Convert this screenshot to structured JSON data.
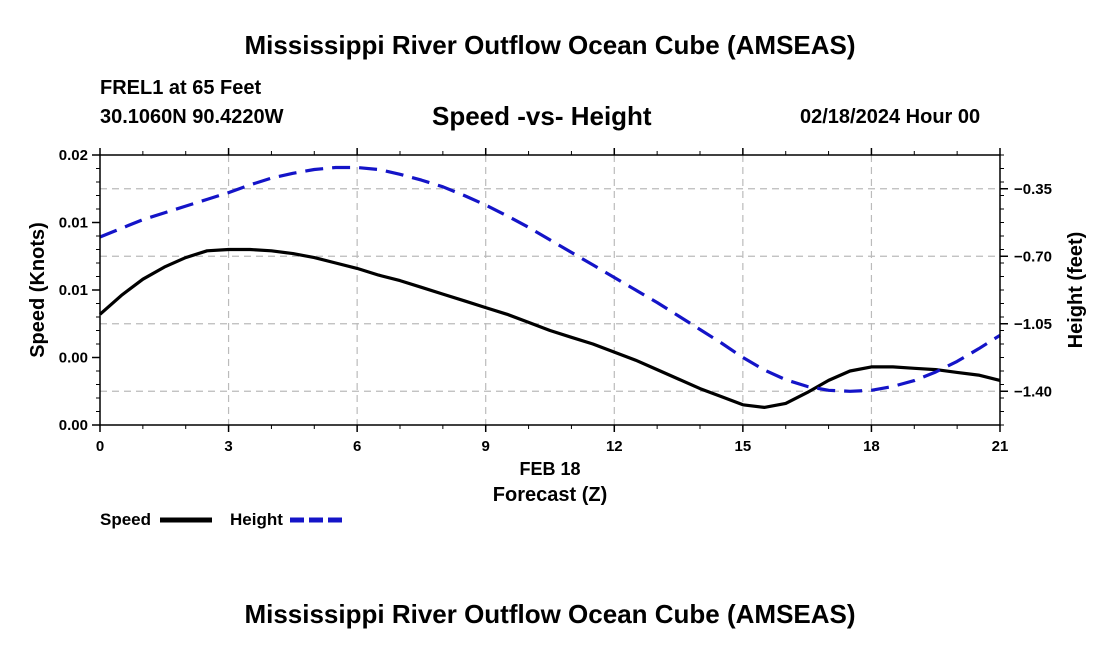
{
  "header": {
    "title": "Mississippi River Outflow Ocean Cube (AMSEAS)",
    "station": "FREL1 at 65 Feet",
    "coords": "30.1060N  90.4220W",
    "chart_title": "Speed -vs- Height",
    "datetime": "02/18/2024 Hour 00"
  },
  "footer": {
    "title": "Mississippi River Outflow Ocean Cube (AMSEAS)"
  },
  "colors": {
    "speed": "#000000",
    "height": "#1414c8",
    "grid": "#bbbbbb"
  },
  "chart_data": {
    "type": "line",
    "title": "Speed -vs- Height",
    "xlabel": "Forecast (Z)",
    "xlabel_date": "FEB 18",
    "ylabel": "Speed (Knots)",
    "y2label": "Height (feet)",
    "xlim": [
      0,
      21
    ],
    "ylim": [
      0,
      0.02
    ],
    "y2lim": [
      -1.575,
      -0.175
    ],
    "x_ticks": [
      0,
      3,
      6,
      9,
      12,
      15,
      18,
      21
    ],
    "x_tick_labels": [
      "0",
      "3",
      "6",
      "9",
      "12",
      "15",
      "18",
      "21"
    ],
    "y_ticks": [
      0,
      0.005,
      0.01,
      0.015,
      0.02
    ],
    "y_tick_labels": [
      "0.00",
      "0.00",
      "0.01",
      "0.01",
      "0.02"
    ],
    "y2_ticks": [
      -1.4,
      -1.05,
      -0.7,
      -0.35
    ],
    "y2_tick_labels": [
      "−1.40",
      "−1.05",
      "−0.70",
      "−0.35"
    ],
    "legend": [
      {
        "name": "Speed",
        "style": "solid"
      },
      {
        "name": "Height",
        "style": "dashed"
      }
    ],
    "series": [
      {
        "name": "Speed",
        "axis": "left",
        "x": [
          0,
          0.5,
          1,
          1.5,
          2,
          2.5,
          3,
          3.5,
          4,
          4.5,
          5,
          5.5,
          6,
          6.5,
          7,
          7.5,
          8,
          8.5,
          9,
          9.5,
          10,
          10.5,
          11,
          11.5,
          12,
          12.5,
          13,
          13.5,
          14,
          14.5,
          15,
          15.5,
          16,
          16.5,
          17,
          17.5,
          18,
          18.5,
          19,
          19.5,
          20,
          20.5,
          21
        ],
        "values": [
          0.0082,
          0.0096,
          0.0108,
          0.0117,
          0.0124,
          0.0129,
          0.013,
          0.013,
          0.0129,
          0.0127,
          0.0124,
          0.012,
          0.0116,
          0.0111,
          0.0107,
          0.0102,
          0.0097,
          0.0092,
          0.0087,
          0.0082,
          0.0076,
          0.007,
          0.0065,
          0.006,
          0.0054,
          0.0048,
          0.0041,
          0.0034,
          0.0027,
          0.0021,
          0.0015,
          0.0013,
          0.0016,
          0.0024,
          0.0033,
          0.004,
          0.0043,
          0.0043,
          0.0042,
          0.0041,
          0.0039,
          0.0037,
          0.0033
        ]
      },
      {
        "name": "Height",
        "axis": "right",
        "x": [
          0,
          0.5,
          1,
          1.5,
          2,
          2.5,
          3,
          3.5,
          4,
          4.5,
          5,
          5.5,
          6,
          6.5,
          7,
          7.5,
          8,
          8.5,
          9,
          9.5,
          10,
          10.5,
          11,
          11.5,
          12,
          12.5,
          13,
          13.5,
          14,
          14.5,
          15,
          15.5,
          16,
          16.5,
          17,
          17.5,
          18,
          18.5,
          19,
          19.5,
          20,
          20.5,
          21
        ],
        "values": [
          -0.6,
          -0.555,
          -0.51,
          -0.475,
          -0.44,
          -0.405,
          -0.37,
          -0.33,
          -0.295,
          -0.27,
          -0.25,
          -0.24,
          -0.24,
          -0.25,
          -0.275,
          -0.305,
          -0.34,
          -0.385,
          -0.435,
          -0.49,
          -0.55,
          -0.615,
          -0.68,
          -0.745,
          -0.81,
          -0.875,
          -0.94,
          -1.01,
          -1.08,
          -1.15,
          -1.225,
          -1.29,
          -1.34,
          -1.375,
          -1.395,
          -1.4,
          -1.395,
          -1.375,
          -1.345,
          -1.3,
          -1.245,
          -1.18,
          -1.11
        ]
      }
    ]
  }
}
